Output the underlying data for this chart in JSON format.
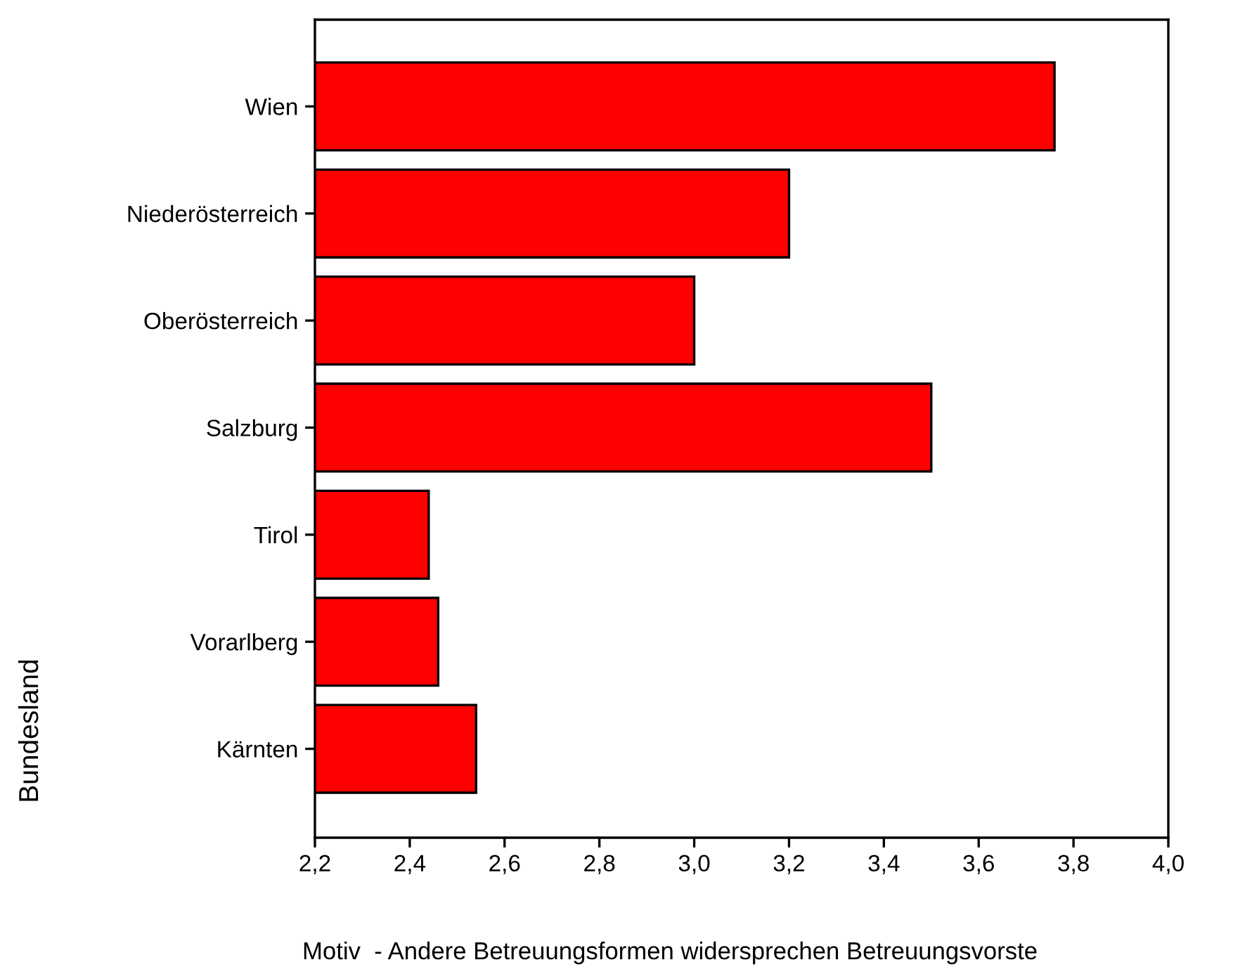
{
  "chart_data": {
    "type": "bar",
    "orientation": "horizontal",
    "categories": [
      "Wien",
      "Niederösterreich",
      "Oberösterreich",
      "Salzburg",
      "Tirol",
      "Vorarlberg",
      "Kärnten"
    ],
    "values": [
      3.76,
      3.2,
      3.0,
      3.5,
      2.44,
      2.46,
      2.54
    ],
    "color": "#ff0000",
    "xlim": [
      2.2,
      4.0
    ],
    "xticks": [
      {
        "value": 2.2,
        "label": "2,2"
      },
      {
        "value": 2.4,
        "label": "2,4"
      },
      {
        "value": 2.6,
        "label": "2,6"
      },
      {
        "value": 2.8,
        "label": "2,8"
      },
      {
        "value": 3.0,
        "label": "3,0"
      },
      {
        "value": 3.2,
        "label": "3,2"
      },
      {
        "value": 3.4,
        "label": "3,4"
      },
      {
        "value": 3.6,
        "label": "3,6"
      },
      {
        "value": 3.8,
        "label": "3,8"
      },
      {
        "value": 4.0,
        "label": "4,0"
      }
    ],
    "xlabel": "Motiv  - Andere Betreuungsformen widersprechen Betreuungsvorste",
    "ylabel": "Bundesland",
    "grid": false
  }
}
